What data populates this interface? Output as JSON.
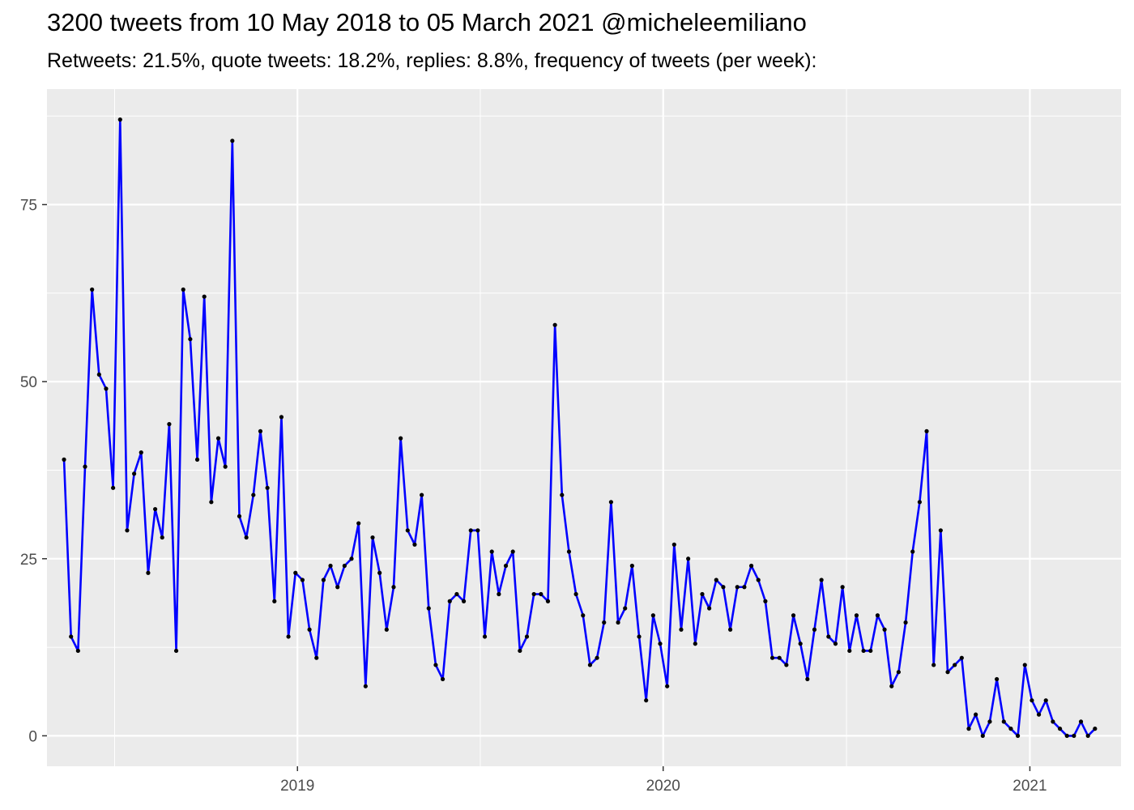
{
  "chart_data": {
    "type": "line",
    "title": "3200 tweets from 10 May 2018 to 05 March 2021 @micheleemiliano",
    "subtitle": "Retweets: 21.5%, quote tweets: 18.2%, replies: 8.8%, frequency of tweets (per week):",
    "xlabel": "",
    "ylabel": "",
    "x_axis": "date",
    "xlim": [
      "2018-04-26",
      "2021-04-02"
    ],
    "ylim": [
      -4.3,
      91.3
    ],
    "x_ticks": [
      {
        "date": "2019-01-01",
        "label": "2019"
      },
      {
        "date": "2020-01-01",
        "label": "2020"
      },
      {
        "date": "2021-01-01",
        "label": "2021"
      }
    ],
    "y_ticks": [
      0,
      25,
      50,
      75
    ],
    "grid": true,
    "legend": "none",
    "colors": {
      "line": "#0000ff",
      "point": "#000000",
      "panel": "#ebebeb",
      "grid": "#ffffff"
    },
    "series": [
      {
        "x": [
          "2018-05-13",
          "2018-05-20",
          "2018-05-27",
          "2018-06-03",
          "2018-06-10",
          "2018-06-17",
          "2018-06-24",
          "2018-07-01",
          "2018-07-08",
          "2018-07-15",
          "2018-07-22",
          "2018-07-29",
          "2018-08-05",
          "2018-08-12",
          "2018-08-19",
          "2018-08-26",
          "2018-09-02",
          "2018-09-09",
          "2018-09-16",
          "2018-09-23",
          "2018-09-30",
          "2018-10-07",
          "2018-10-14",
          "2018-10-21",
          "2018-10-28",
          "2018-11-04",
          "2018-11-11",
          "2018-11-18",
          "2018-11-25",
          "2018-12-02",
          "2018-12-09",
          "2018-12-16",
          "2018-12-23",
          "2018-12-30",
          "2019-01-06",
          "2019-01-13",
          "2019-01-20",
          "2019-01-27",
          "2019-02-03",
          "2019-02-10",
          "2019-02-17",
          "2019-02-24",
          "2019-03-03",
          "2019-03-10",
          "2019-03-17",
          "2019-03-24",
          "2019-03-31",
          "2019-04-07",
          "2019-04-14",
          "2019-04-21",
          "2019-04-28",
          "2019-05-05",
          "2019-05-12",
          "2019-05-19",
          "2019-05-26",
          "2019-06-02",
          "2019-06-09",
          "2019-06-16",
          "2019-06-23",
          "2019-06-30",
          "2019-07-07",
          "2019-07-14",
          "2019-07-21",
          "2019-07-28",
          "2019-08-04",
          "2019-08-11",
          "2019-08-18",
          "2019-08-25",
          "2019-09-01",
          "2019-09-08",
          "2019-09-15",
          "2019-09-22",
          "2019-09-29",
          "2019-10-06",
          "2019-10-13",
          "2019-10-20",
          "2019-10-27",
          "2019-11-03",
          "2019-11-10",
          "2019-11-17",
          "2019-11-24",
          "2019-12-01",
          "2019-12-08",
          "2019-12-15",
          "2019-12-22",
          "2019-12-29",
          "2020-01-05",
          "2020-01-12",
          "2020-01-19",
          "2020-01-26",
          "2020-02-02",
          "2020-02-09",
          "2020-02-16",
          "2020-02-23",
          "2020-03-01",
          "2020-03-08",
          "2020-03-15",
          "2020-03-22",
          "2020-03-29",
          "2020-04-05",
          "2020-04-12",
          "2020-04-19",
          "2020-04-26",
          "2020-05-03",
          "2020-05-10",
          "2020-05-17",
          "2020-05-24",
          "2020-05-31",
          "2020-06-07",
          "2020-06-14",
          "2020-06-21",
          "2020-06-28",
          "2020-07-05",
          "2020-07-12",
          "2020-07-19",
          "2020-07-26",
          "2020-08-02",
          "2020-08-09",
          "2020-08-16",
          "2020-08-23",
          "2020-08-30",
          "2020-09-06",
          "2020-09-13",
          "2020-09-20",
          "2020-09-27",
          "2020-10-04",
          "2020-10-11",
          "2020-10-18",
          "2020-10-25",
          "2020-11-01",
          "2020-11-08",
          "2020-11-15",
          "2020-11-22",
          "2020-11-29",
          "2020-12-06",
          "2020-12-13",
          "2020-12-20",
          "2020-12-27",
          "2021-01-03",
          "2021-01-10",
          "2021-01-17",
          "2021-01-24",
          "2021-01-31",
          "2021-02-07",
          "2021-02-14",
          "2021-02-21",
          "2021-02-28",
          "2021-03-07"
        ],
        "values": [
          39,
          14,
          12,
          38,
          63,
          51,
          49,
          35,
          87,
          29,
          37,
          40,
          23,
          32,
          28,
          44,
          12,
          63,
          56,
          39,
          62,
          33,
          42,
          38,
          84,
          31,
          28,
          34,
          43,
          35,
          19,
          45,
          14,
          23,
          22,
          15,
          11,
          22,
          24,
          21,
          24,
          25,
          30,
          7,
          28,
          23,
          15,
          21,
          42,
          29,
          27,
          34,
          18,
          10,
          8,
          19,
          20,
          19,
          29,
          29,
          14,
          26,
          20,
          24,
          26,
          12,
          14,
          20,
          20,
          19,
          58,
          34,
          26,
          20,
          17,
          10,
          11,
          16,
          33,
          16,
          18,
          24,
          14,
          5,
          17,
          13,
          7,
          27,
          15,
          25,
          13,
          20,
          18,
          22,
          21,
          15,
          21,
          21,
          24,
          22,
          19,
          11,
          11,
          10,
          17,
          13,
          8,
          15,
          22,
          14,
          13,
          21,
          12,
          17,
          12,
          12,
          17,
          15,
          7,
          9,
          16,
          26,
          33,
          43,
          10,
          29,
          9,
          10,
          11,
          1,
          3,
          0,
          2,
          8,
          2,
          1,
          0,
          10,
          5,
          3,
          5,
          2,
          1,
          0,
          0,
          2,
          0,
          1
        ]
      }
    ]
  }
}
